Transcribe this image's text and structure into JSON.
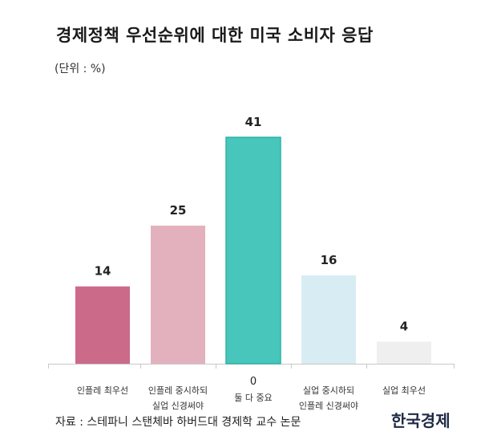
{
  "header": {
    "title": "경제정책 우선순위에 대한 미국 소비자 응답",
    "unit": "(단위 : %)"
  },
  "footer": {
    "source": "자료 : 스테파니 스탠체바 하버드대 경제학 교수 논문",
    "logo": "한국경제"
  },
  "chart_data": {
    "type": "bar",
    "title": "경제정책 우선순위에 대한 미국 소비자 응답",
    "unit": "(단위 : %)",
    "categories": [
      [
        "인플레 최우선"
      ],
      [
        "인플레 중시하되",
        "실업 신경써야"
      ],
      [
        "둘 다 중요"
      ],
      [
        "실업 중시하되",
        "인플레 신경써야"
      ],
      [
        "실업 최우선"
      ]
    ],
    "values": [
      14,
      25,
      41,
      16,
      4
    ],
    "highlight_label": "0",
    "ylim": [
      0,
      41
    ],
    "colors": [
      "#cc6a8a",
      "#e3b1bd",
      "#48c6bb",
      "#d8ecf4",
      "#efefef"
    ],
    "grid": false,
    "legend": "none"
  }
}
